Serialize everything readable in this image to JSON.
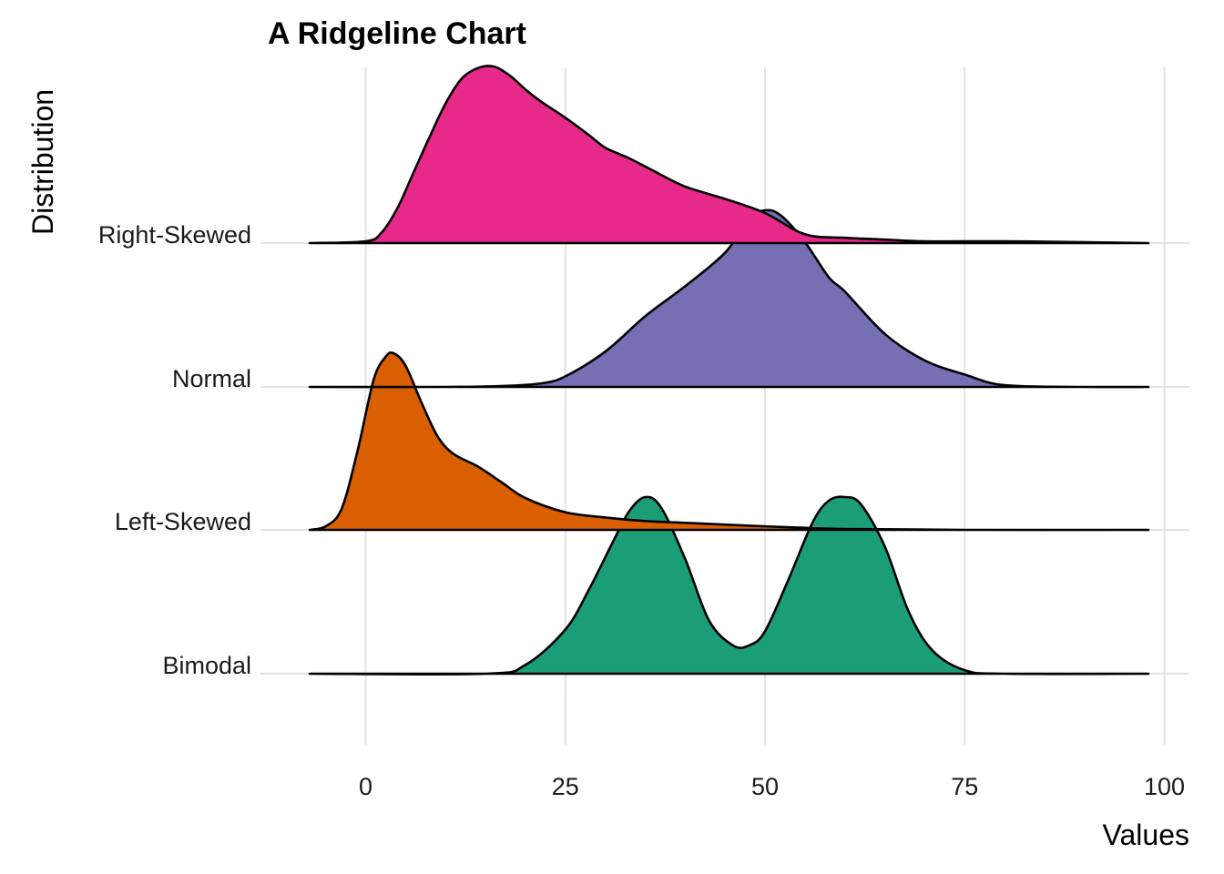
{
  "chart_data": {
    "type": "area",
    "subtype": "ridgeline",
    "title": "A Ridgeline Chart",
    "xlabel": "Values",
    "ylabel": "Distribution",
    "xlim": [
      -12.5,
      103
    ],
    "x_ticks": [
      0,
      25,
      50,
      75,
      100
    ],
    "x_tick_labels": [
      "0",
      "25",
      "50",
      "75",
      "100"
    ],
    "grid": true,
    "legend": "none",
    "categories": [
      "Right-Skewed",
      "Normal",
      "Left-Skewed",
      "Bimodal"
    ],
    "series": [
      {
        "name": "Right-Skewed",
        "color": "#E7298A",
        "x": [
          -7,
          0,
          2,
          4,
          6,
          8,
          10,
          12,
          14,
          16,
          18,
          20,
          22,
          25,
          28,
          30,
          33,
          36,
          40,
          45,
          50,
          55,
          60,
          65,
          70,
          80,
          90,
          98
        ],
        "density": [
          0,
          0.01,
          0.06,
          0.2,
          0.4,
          0.6,
          0.79,
          0.93,
          0.99,
          1.0,
          0.95,
          0.87,
          0.8,
          0.71,
          0.61,
          0.54,
          0.48,
          0.41,
          0.32,
          0.25,
          0.17,
          0.05,
          0.03,
          0.02,
          0.01,
          0.01,
          0.005,
          0
        ]
      },
      {
        "name": "Normal",
        "color": "#7570B3",
        "x": [
          -7,
          10,
          17,
          22,
          25,
          30,
          35,
          40,
          45,
          48,
          50,
          52,
          55,
          58,
          60,
          65,
          70,
          75,
          80,
          90,
          98
        ],
        "density": [
          0,
          0,
          0.005,
          0.02,
          0.06,
          0.2,
          0.4,
          0.57,
          0.76,
          0.95,
          1.0,
          0.97,
          0.82,
          0.62,
          0.54,
          0.3,
          0.15,
          0.07,
          0.01,
          0,
          0
        ]
      },
      {
        "name": "Left-Skewed",
        "color": "#D95F02",
        "x": [
          -7,
          -5,
          -3,
          -1,
          1,
          2.5,
          3.5,
          5,
          7,
          9,
          11,
          14,
          17,
          20,
          25,
          30,
          35,
          40,
          50,
          60,
          75,
          98
        ],
        "density": [
          0,
          0.02,
          0.12,
          0.45,
          0.85,
          0.98,
          1.0,
          0.93,
          0.72,
          0.53,
          0.43,
          0.36,
          0.27,
          0.18,
          0.1,
          0.07,
          0.05,
          0.04,
          0.02,
          0.005,
          0,
          0
        ]
      },
      {
        "name": "Bimodal",
        "color": "#1B9E77",
        "x": [
          -7,
          15,
          20,
          25,
          28,
          31,
          33,
          35,
          37,
          40,
          43,
          46,
          48,
          50,
          53,
          56,
          58,
          60,
          62,
          65,
          68,
          71,
          75,
          80,
          98
        ],
        "density": [
          0,
          0,
          0.05,
          0.25,
          0.48,
          0.75,
          0.92,
          1.0,
          0.94,
          0.65,
          0.3,
          0.16,
          0.16,
          0.24,
          0.54,
          0.86,
          0.98,
          1.0,
          0.96,
          0.72,
          0.35,
          0.13,
          0.02,
          0.0,
          0
        ]
      }
    ]
  }
}
